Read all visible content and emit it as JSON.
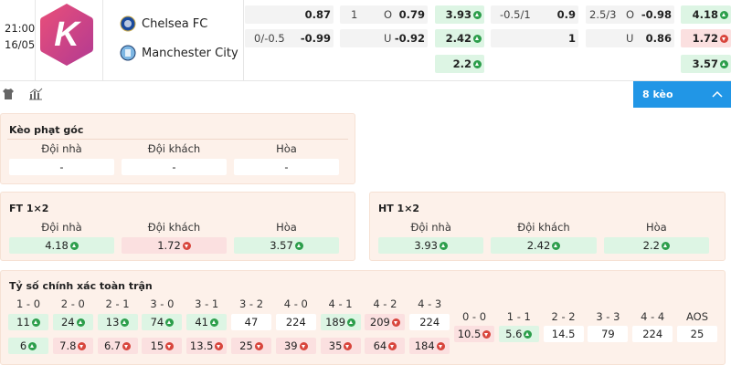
{
  "header": {
    "time": "21:00",
    "date": "16/05",
    "logo": "K",
    "home_team": "Chelsea FC",
    "away_team": "Manchester City"
  },
  "markets": [
    {
      "cells": [
        {
          "value": "0.87"
        },
        {
          "line": "0/-0.5",
          "value": "-0.99"
        }
      ]
    },
    {
      "cells": [
        {
          "line": "1",
          "side": "O",
          "value": "0.79"
        },
        {
          "side": "U",
          "value": "-0.92"
        }
      ]
    },
    {
      "cells": [
        {
          "value": "3.93",
          "trend": "up"
        },
        {
          "value": "2.42",
          "trend": "up"
        },
        {
          "value": "2.2",
          "trend": "up"
        }
      ]
    },
    {
      "cells": [
        {
          "line": "-0.5/1",
          "value": "0.9"
        },
        {
          "value": "1"
        }
      ]
    },
    {
      "cells": [
        {
          "line": "2.5/3",
          "side": "O",
          "value": "-0.98"
        },
        {
          "side": "U",
          "value": "0.86"
        }
      ]
    },
    {
      "cells": [
        {
          "value": "4.18",
          "trend": "up"
        },
        {
          "value": "1.72",
          "trend": "down"
        },
        {
          "value": "3.57",
          "trend": "up"
        }
      ]
    }
  ],
  "tab": {
    "label": "8 kèo"
  },
  "sections": [
    {
      "title": "Kèo phạt góc",
      "headers": [
        "Đội nhà",
        "Đội khách",
        "Hòa"
      ],
      "values": [
        {
          "value": "-"
        },
        {
          "value": "-"
        },
        {
          "value": "-"
        }
      ]
    },
    {
      "title": "FT 1×2",
      "headers": [
        "Đội nhà",
        "Đội khách",
        "Hòa"
      ],
      "values": [
        {
          "value": "4.18",
          "trend": "up"
        },
        {
          "value": "1.72",
          "trend": "down"
        },
        {
          "value": "3.57",
          "trend": "up"
        }
      ]
    },
    {
      "title": "HT 1×2",
      "headers": [
        "Đội nhà",
        "Đội khách",
        "Hòa"
      ],
      "values": [
        {
          "value": "3.93",
          "trend": "up"
        },
        {
          "value": "2.42",
          "trend": "up"
        },
        {
          "value": "2.2",
          "trend": "up"
        }
      ]
    }
  ],
  "correct_score": {
    "title": "Tỷ số chính xác toàn trận",
    "columns": [
      {
        "label": "1 - 0",
        "top": {
          "value": "11",
          "trend": "up"
        },
        "bottom": {
          "value": "6",
          "trend": "up"
        }
      },
      {
        "label": "2 - 0",
        "top": {
          "value": "24",
          "trend": "up"
        },
        "bottom": {
          "value": "7.8",
          "trend": "down"
        }
      },
      {
        "label": "2 - 1",
        "top": {
          "value": "13",
          "trend": "up"
        },
        "bottom": {
          "value": "6.7",
          "trend": "down"
        }
      },
      {
        "label": "3 - 0",
        "top": {
          "value": "74",
          "trend": "up"
        },
        "bottom": {
          "value": "15",
          "trend": "down"
        }
      },
      {
        "label": "3 - 1",
        "top": {
          "value": "41",
          "trend": "up"
        },
        "bottom": {
          "value": "13.5",
          "trend": "down"
        }
      },
      {
        "label": "3 - 2",
        "top": {
          "value": "47"
        },
        "bottom": {
          "value": "25",
          "trend": "down"
        }
      },
      {
        "label": "4 - 0",
        "top": {
          "value": "224"
        },
        "bottom": {
          "value": "39",
          "trend": "down"
        }
      },
      {
        "label": "4 - 1",
        "top": {
          "value": "189",
          "trend": "up"
        },
        "bottom": {
          "value": "35",
          "trend": "down"
        }
      },
      {
        "label": "4 - 2",
        "top": {
          "value": "209",
          "trend": "down"
        },
        "bottom": {
          "value": "64",
          "trend": "down"
        }
      },
      {
        "label": "4 - 3",
        "top": {
          "value": "224"
        },
        "bottom": {
          "value": "184",
          "trend": "down"
        }
      }
    ],
    "draws": [
      {
        "label": "0 - 0",
        "odds": {
          "value": "10.5",
          "trend": "down"
        }
      },
      {
        "label": "1 - 1",
        "odds": {
          "value": "5.6",
          "trend": "up"
        }
      },
      {
        "label": "2 - 2",
        "odds": {
          "value": "14.5"
        }
      },
      {
        "label": "3 - 3",
        "odds": {
          "value": "79"
        }
      },
      {
        "label": "4 - 4",
        "odds": {
          "value": "224"
        }
      },
      {
        "label": "AOS",
        "odds": {
          "value": "25"
        }
      }
    ]
  }
}
